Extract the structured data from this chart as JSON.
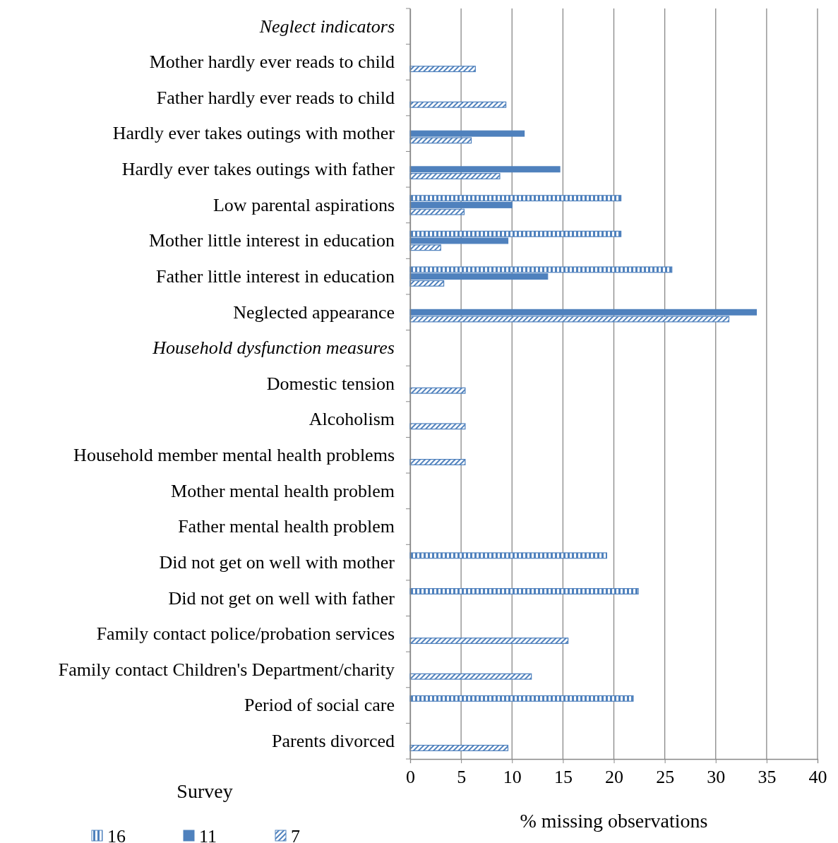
{
  "chart_data": {
    "type": "bar",
    "orientation": "horizontal",
    "xlabel": "% missing observations",
    "legend_title": "Survey",
    "legend": "bottom left",
    "grid": "x",
    "categories": [
      "Neglect indicators",
      "Mother hardly ever reads to child",
      "Father hardly ever reads to child",
      "Hardly ever takes outings with mother",
      "Hardly ever takes outings with father",
      "Low parental aspirations",
      "Mother little interest in education",
      "Father little interest in education",
      "Neglected appearance",
      "Household dysfunction measures",
      "Domestic tension",
      "Alcoholism",
      "Household member mental health problems",
      "Mother mental health problem",
      "Father mental health problem",
      "Did not get on well with mother",
      "Did not get on well with father",
      "Family contact police/probation services",
      "Family contact Children's Department/charity",
      "Period of social care",
      "Parents divorced"
    ],
    "series": [
      {
        "name": "16",
        "color": "#4f81bd",
        "values": [
          null,
          null,
          null,
          null,
          null,
          20.7,
          20.7,
          25.7,
          null,
          null,
          null,
          null,
          null,
          null,
          null,
          19.3,
          22.4,
          null,
          null,
          21.9,
          null
        ]
      },
      {
        "name": "11",
        "color": "#4f81bd",
        "values": [
          null,
          null,
          null,
          11.2,
          14.7,
          10.0,
          9.6,
          13.5,
          34.0,
          null,
          null,
          null,
          null,
          null,
          null,
          null,
          null,
          null,
          null,
          null,
          null
        ]
      },
      {
        "name": "7",
        "color": "#4f81bd",
        "values": [
          null,
          6.4,
          9.4,
          6.0,
          8.8,
          5.3,
          3.0,
          3.3,
          31.3,
          null,
          5.4,
          5.4,
          5.4,
          null,
          null,
          null,
          null,
          15.5,
          11.9,
          null,
          9.6
        ]
      }
    ],
    "xlim": [
      0,
      40
    ],
    "xticks": [
      0,
      5,
      10,
      15,
      20,
      25,
      30,
      35,
      40
    ]
  }
}
